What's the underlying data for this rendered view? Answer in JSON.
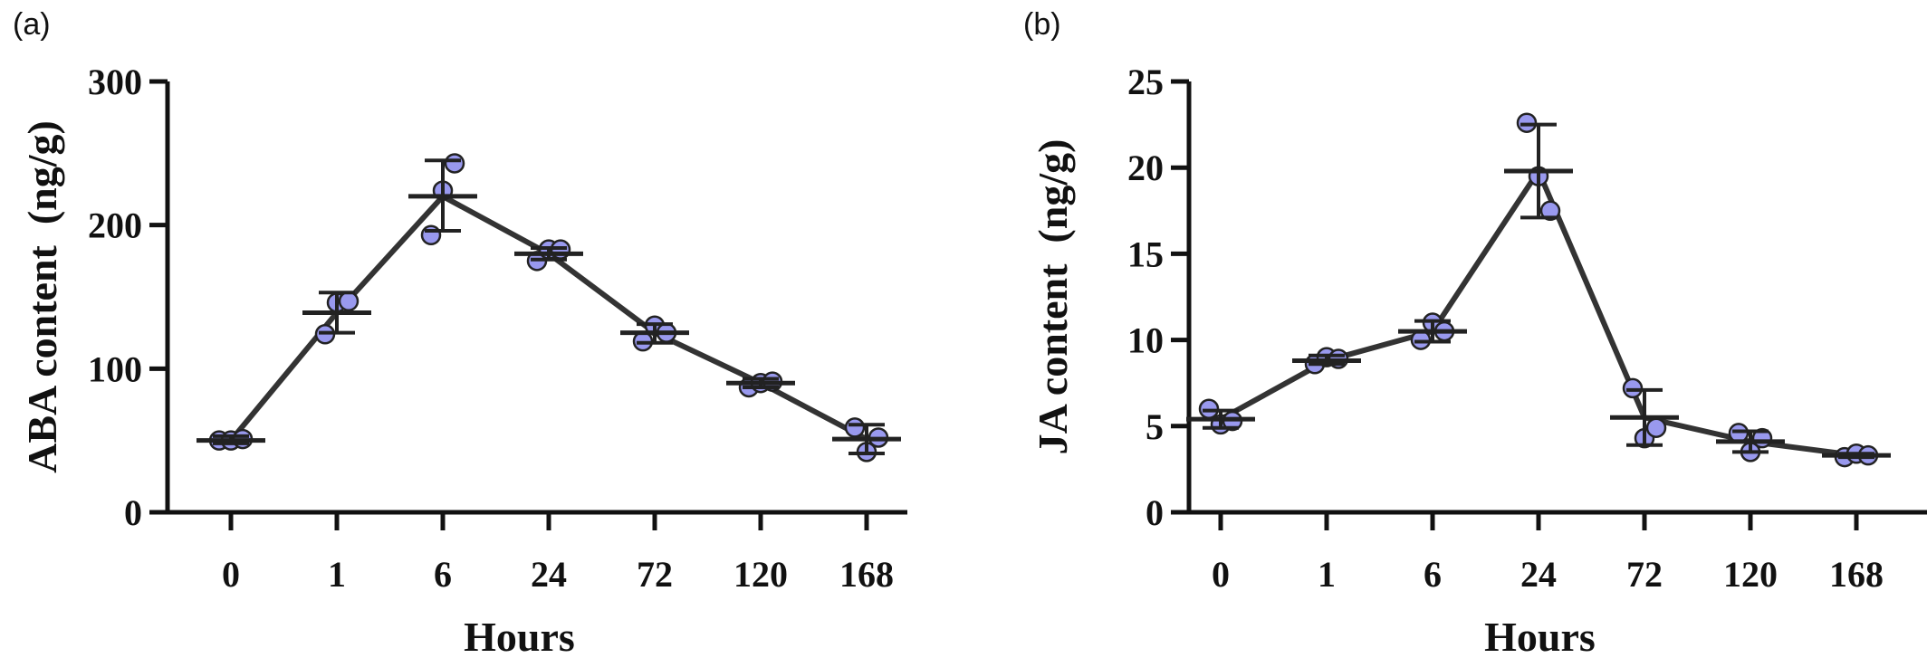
{
  "chart_data": [
    {
      "panel_label": "(a)",
      "type": "line",
      "categories": [
        "0",
        "1",
        "6",
        "24",
        "72",
        "120",
        "168"
      ],
      "xlabel": "Hours",
      "ylabel": "ABA content  (ng/g)",
      "ylim": [
        0,
        300
      ],
      "yticks": [
        "0",
        "100",
        "200",
        "300"
      ],
      "grid": false,
      "legend": "none",
      "line_color": "#333333",
      "marker_color": "#9999ee",
      "series": [
        {
          "mean": [
            50,
            139,
            220,
            180,
            125,
            90,
            51
          ],
          "sd_low": [
            48,
            125,
            196,
            176,
            118,
            87,
            41
          ],
          "sd_high": [
            53,
            153,
            245,
            184,
            131,
            93,
            61
          ],
          "points": [
            [
              50,
              50,
              51
            ],
            [
              124,
              146,
              147
            ],
            [
              193,
              224,
              243
            ],
            [
              175,
              183,
              183
            ],
            [
              119,
              130,
              125
            ],
            [
              87,
              90,
              91
            ],
            [
              59,
              42,
              52
            ]
          ]
        }
      ]
    },
    {
      "panel_label": "(b)",
      "type": "line",
      "categories": [
        "0",
        "1",
        "6",
        "24",
        "72",
        "120",
        "168"
      ],
      "xlabel": "Hours",
      "ylabel": "JA content  (ng/g)",
      "ylim": [
        0,
        25
      ],
      "yticks": [
        "0",
        "5",
        "10",
        "15",
        "20",
        "25"
      ],
      "grid": false,
      "legend": "none",
      "line_color": "#333333",
      "marker_color": "#9999ee",
      "series": [
        {
          "mean": [
            5.4,
            8.8,
            10.5,
            19.8,
            5.5,
            4.1,
            3.3
          ],
          "sd_low": [
            4.9,
            8.6,
            9.9,
            17.1,
            3.9,
            3.5,
            3.2
          ],
          "sd_high": [
            5.9,
            9.1,
            11.1,
            22.5,
            7.1,
            4.7,
            3.4
          ],
          "points": [
            [
              6.0,
              5.1,
              5.3
            ],
            [
              8.6,
              9.0,
              8.9
            ],
            [
              10.0,
              11.0,
              10.5
            ],
            [
              22.6,
              19.5,
              17.5
            ],
            [
              7.2,
              4.3,
              4.9
            ],
            [
              4.6,
              3.5,
              4.3
            ],
            [
              3.2,
              3.4,
              3.3
            ]
          ]
        }
      ]
    }
  ]
}
